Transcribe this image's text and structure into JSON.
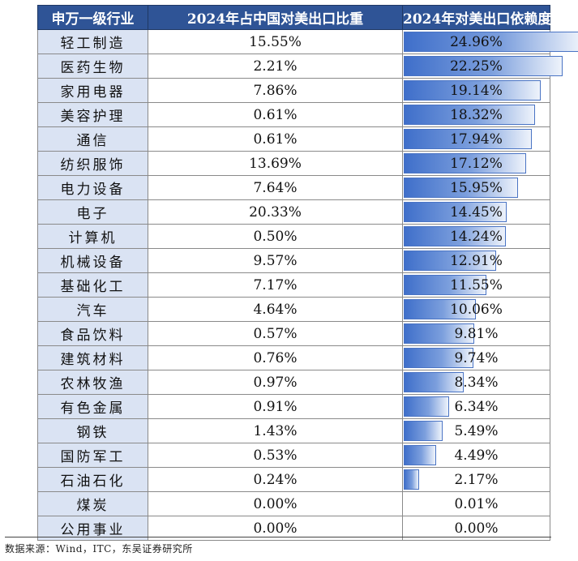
{
  "table": {
    "headers": [
      "申万一级行业",
      "2024年占中国对美出口比重",
      "2024年对美出口依赖度"
    ],
    "bar_color": "#3f6fca",
    "header_bg": "#2f5496",
    "category_bg": "#dae3f3",
    "rows": [
      {
        "industry": "轻工制造",
        "share": "15.55%",
        "dependency": "24.96%",
        "dep_value": 24.96
      },
      {
        "industry": "医药生物",
        "share": "2.21%",
        "dependency": "22.25%",
        "dep_value": 22.25
      },
      {
        "industry": "家用电器",
        "share": "7.86%",
        "dependency": "19.14%",
        "dep_value": 19.14
      },
      {
        "industry": "美容护理",
        "share": "0.61%",
        "dependency": "18.32%",
        "dep_value": 18.32
      },
      {
        "industry": "通信",
        "share": "0.61%",
        "dependency": "17.94%",
        "dep_value": 17.94
      },
      {
        "industry": "纺织服饰",
        "share": "13.69%",
        "dependency": "17.12%",
        "dep_value": 17.12
      },
      {
        "industry": "电力设备",
        "share": "7.64%",
        "dependency": "15.95%",
        "dep_value": 15.95
      },
      {
        "industry": "电子",
        "share": "20.33%",
        "dependency": "14.45%",
        "dep_value": 14.45
      },
      {
        "industry": "计算机",
        "share": "0.50%",
        "dependency": "14.24%",
        "dep_value": 14.24
      },
      {
        "industry": "机械设备",
        "share": "9.57%",
        "dependency": "12.91%",
        "dep_value": 12.91
      },
      {
        "industry": "基础化工",
        "share": "7.17%",
        "dependency": "11.55%",
        "dep_value": 11.55
      },
      {
        "industry": "汽车",
        "share": "4.64%",
        "dependency": "10.06%",
        "dep_value": 10.06
      },
      {
        "industry": "食品饮料",
        "share": "0.57%",
        "dependency": "9.81%",
        "dep_value": 9.81
      },
      {
        "industry": "建筑材料",
        "share": "0.76%",
        "dependency": "9.74%",
        "dep_value": 9.74
      },
      {
        "industry": "农林牧渔",
        "share": "0.97%",
        "dependency": "8.34%",
        "dep_value": 8.34
      },
      {
        "industry": "有色金属",
        "share": "0.91%",
        "dependency": "6.34%",
        "dep_value": 6.34
      },
      {
        "industry": "钢铁",
        "share": "1.43%",
        "dependency": "5.49%",
        "dep_value": 5.49
      },
      {
        "industry": "国防军工",
        "share": "0.53%",
        "dependency": "4.49%",
        "dep_value": 4.49
      },
      {
        "industry": "石油石化",
        "share": "0.24%",
        "dependency": "2.17%",
        "dep_value": 2.17
      },
      {
        "industry": "煤炭",
        "share": "0.00%",
        "dependency": "0.01%",
        "dep_value": 0.01
      },
      {
        "industry": "公用事业",
        "share": "0.00%",
        "dependency": "0.00%",
        "dep_value": 0.0
      }
    ]
  },
  "source": "数据来源：Wind，ITC，东吴证券研究所"
}
